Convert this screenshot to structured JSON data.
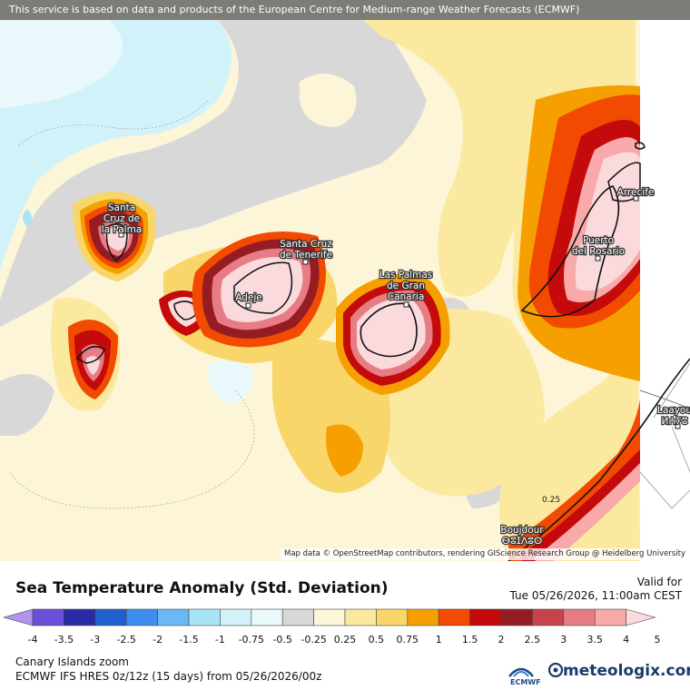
{
  "banner": "This service is based on data and products of the European Centre for Medium-range Weather Forecasts (ECMWF)",
  "attribution": "Map data © OpenStreetMap contributors, rendering GIScience Research Group @ Heidelberg University",
  "cities": {
    "santa_cruz_la_palma": [
      "Santa",
      "Cruz de",
      "la Palma"
    ],
    "santa_cruz_tenerife": [
      "Santa Cruz",
      "de Tenerife"
    ],
    "adeje": "Adeje",
    "las_palmas": [
      "Las Palmas",
      "de Gran",
      "Canaria"
    ],
    "puerto_del_rosario": [
      "Puerto",
      "del Rosario"
    ],
    "arrecife": "Arrecife",
    "laayoune": [
      "Laayou",
      "ⵍⵄⵢⵓ"
    ],
    "boujdour": [
      "Boujdour",
      "ⴱⵓⵊⴷⵓⵔ"
    ]
  },
  "contour_label": "0.25",
  "legend": {
    "title": "Sea Temperature Anomaly (Std. Deviation)",
    "valid_label": "Valid for",
    "valid_time": "Tue 05/26/2026, 11:00am CEST",
    "ticks": [
      "-4",
      "-3.5",
      "-3",
      "-2.5",
      "-2",
      "-1.5",
      "-1",
      "-0.75",
      "-0.5",
      "-0.25",
      "0.25",
      "0.5",
      "0.75",
      "1",
      "1.5",
      "2",
      "2.5",
      "3",
      "3.5",
      "4",
      "5"
    ],
    "colors": [
      "#b094f0",
      "#6a4fd8",
      "#2a2aa8",
      "#1f5fd0",
      "#3d8ef0",
      "#6ab8f5",
      "#a8e4f8",
      "#d2f2fa",
      "#e8f8fb",
      "#d8d8d8",
      "#fdf5d8",
      "#fbe9a0",
      "#f8d66a",
      "#f5a000",
      "#f24a00",
      "#c40a0a",
      "#961c24",
      "#c8424c",
      "#e87c84",
      "#f8aaaa",
      "#fadadc"
    ]
  },
  "footer": {
    "region": "Canary Islands zoom",
    "model": "ECMWF IFS HRES 0z/12z (15 days)  from  05/26/2026/00z",
    "ecmwf": "ECMWF",
    "brand": "meteologix.com"
  }
}
